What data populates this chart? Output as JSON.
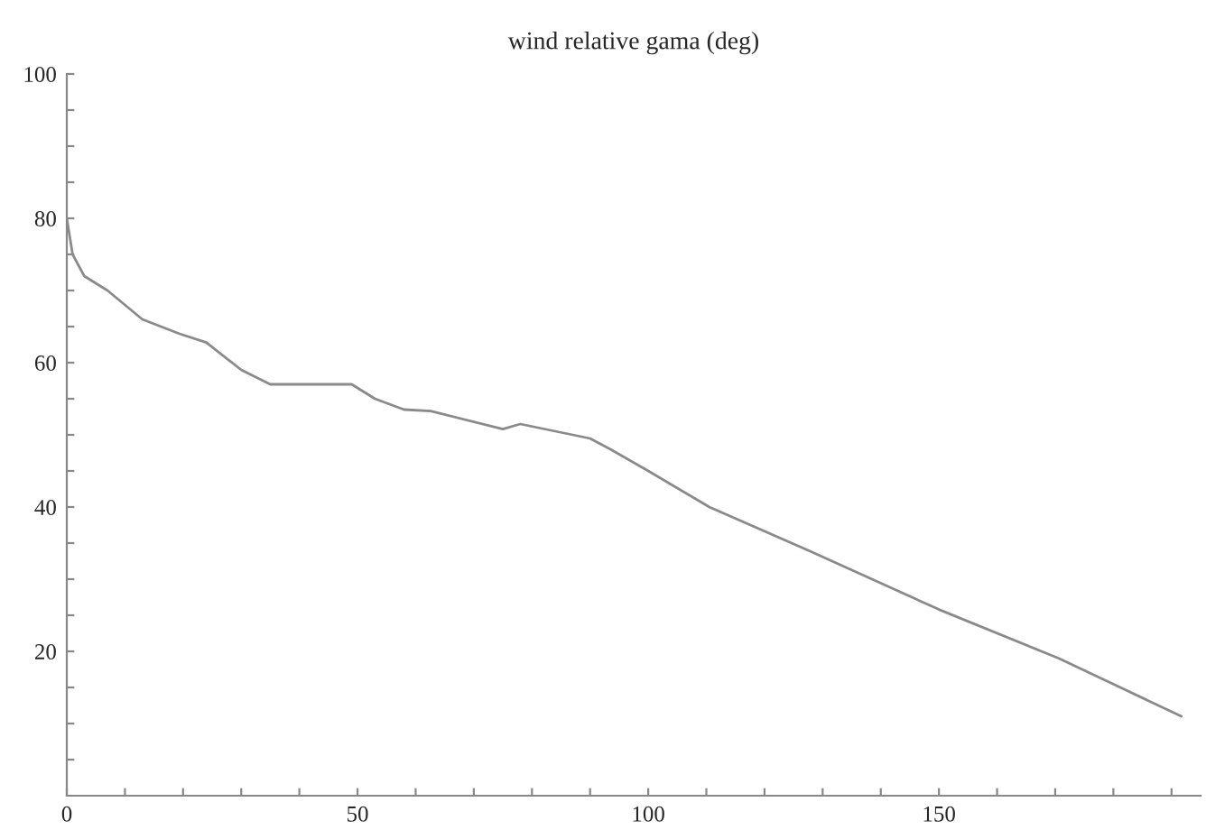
{
  "chart_data": {
    "type": "line",
    "title": "wind relative gama (deg)",
    "series": [
      {
        "color": "#8a8a8a",
        "x": [
          0,
          1,
          3,
          7,
          13,
          19.4,
          24,
          30,
          35,
          49,
          53,
          58,
          62.6,
          75,
          78,
          84,
          90,
          93.5,
          100,
          110.5,
          127.5,
          150,
          170.7,
          191.7
        ],
        "values": [
          80,
          75,
          72,
          70,
          66,
          64,
          62.8,
          59,
          57,
          57,
          55,
          53.5,
          53.3,
          50.8,
          51.5,
          50.5,
          49.5,
          48,
          45,
          40,
          34,
          25.8,
          19,
          11
        ]
      }
    ],
    "xlim": [
      0,
      195
    ],
    "ylim": [
      0,
      100
    ],
    "xticks": [
      0,
      {
        "value": 10,
        "label": null
      },
      {
        "value": 20,
        "label": null
      },
      {
        "value": 30,
        "label": null
      },
      {
        "value": 40,
        "label": null
      },
      50,
      {
        "value": 60,
        "label": null
      },
      {
        "value": 70,
        "label": null
      },
      {
        "value": 80,
        "label": null
      },
      {
        "value": 90,
        "label": null
      },
      100,
      {
        "value": 110,
        "label": null
      },
      {
        "value": 120,
        "label": null
      },
      {
        "value": 130,
        "label": null
      },
      {
        "value": 140,
        "label": null
      },
      150,
      {
        "value": 160,
        "label": null
      },
      {
        "value": 170,
        "label": null
      },
      {
        "value": 180,
        "label": null
      },
      {
        "value": 190,
        "label": null
      }
    ],
    "yticks": [
      {
        "value": 5,
        "label": null
      },
      {
        "value": 10,
        "label": null
      },
      {
        "value": 15,
        "label": null
      },
      20,
      {
        "value": 25,
        "label": null
      },
      {
        "value": 30,
        "label": null
      },
      {
        "value": 35,
        "label": null
      },
      40,
      {
        "value": 45,
        "label": null
      },
      {
        "value": 50,
        "label": null
      },
      {
        "value": 55,
        "label": null
      },
      60,
      {
        "value": 65,
        "label": null
      },
      {
        "value": 70,
        "label": null
      },
      {
        "value": 75,
        "label": null
      },
      80,
      {
        "value": 85,
        "label": null
      },
      {
        "value": 90,
        "label": null
      },
      {
        "value": 95,
        "label": null
      },
      100
    ],
    "grid": false,
    "legend": false,
    "marker": "none",
    "line_style": "solid"
  }
}
